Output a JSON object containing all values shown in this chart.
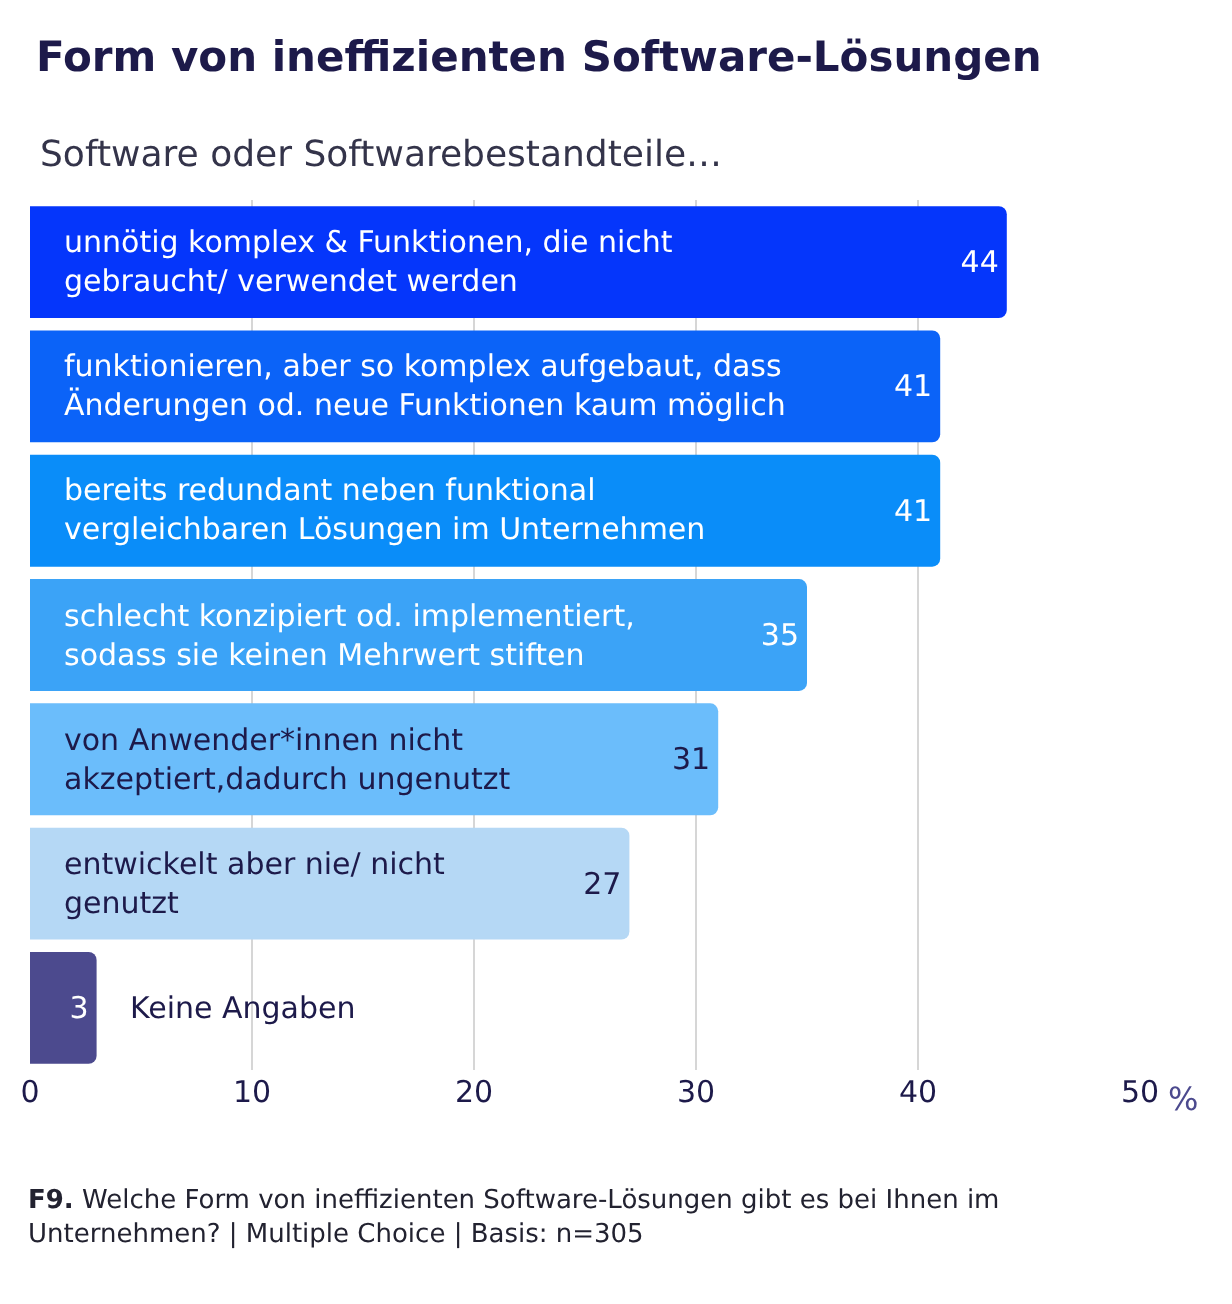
{
  "chart_data": {
    "type": "bar",
    "orientation": "horizontal",
    "title": "Form von ineffizienten Software-Lösungen",
    "subtitle": "Software oder Softwarebestandteile…",
    "xlabel": "%",
    "categories": [
      "unnötig komplex & Funktionen, die nicht gebraucht/ verwendet werden",
      "funktionieren, aber so komplex aufgebaut, dass Änderungen od. neue Funktionen kaum möglich",
      "bereits redundant neben funktional vergleichbaren Lösungen im Unternehmen",
      "schlecht konzipiert od. implementiert, sodass sie keinen Mehrwert stiften",
      "von Anwender*innen nicht akzeptiert,dadurch ungenutzt",
      "entwickelt aber nie/ nicht genutzt",
      "Keine Angaben"
    ],
    "values": [
      44,
      41,
      41,
      35,
      31,
      27,
      3
    ],
    "colors": [
      "#0536fb",
      "#0b63f8",
      "#0a8df9",
      "#3ba3f7",
      "#6bbdfb",
      "#b5d8f5",
      "#4c4a8e"
    ],
    "xlim": [
      0,
      50
    ],
    "xticks": [
      0,
      10,
      20,
      30,
      40,
      50
    ],
    "grid": "x",
    "data_labels": true,
    "annotations": [
      "F9. Welche Form von ineffizienten Software-Lösungen gibt es bei Ihnen im Unternehmen? | Multiple Choice | Basis: n=305"
    ]
  }
}
